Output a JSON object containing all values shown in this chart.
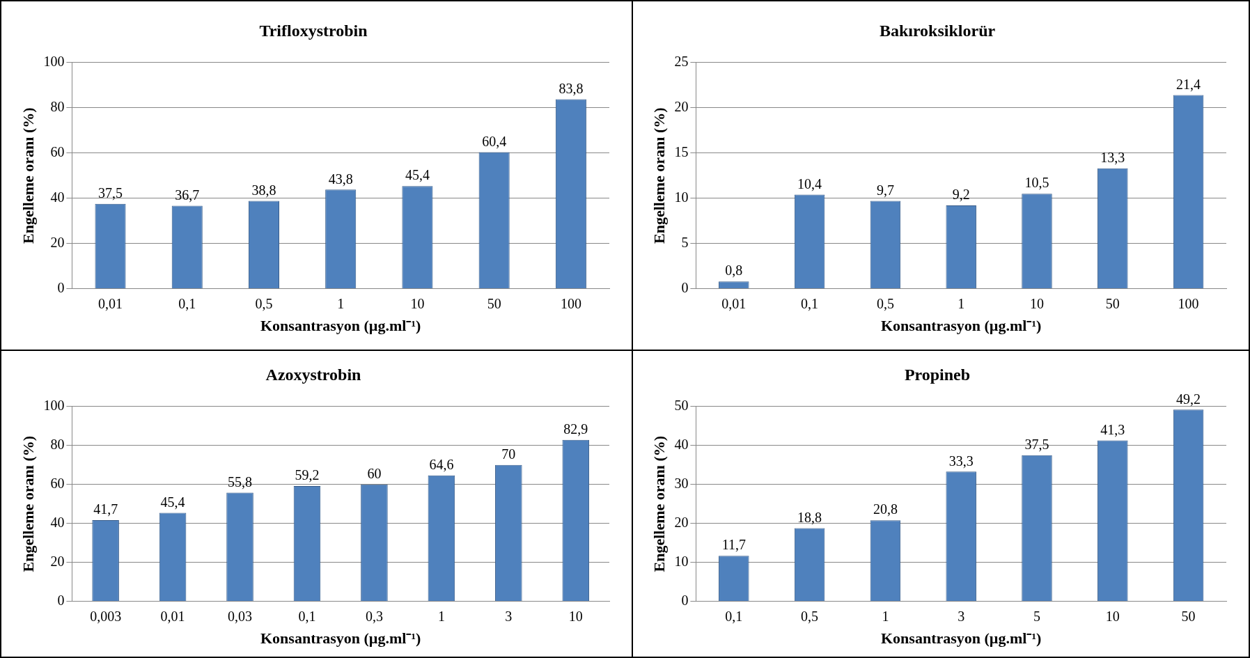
{
  "chart_data": [
    {
      "type": "bar",
      "title": "Trifloxystrobin",
      "xlabel": "Konsantrasyon (µg.ml⁻¹)",
      "ylabel": "Engelleme oranı (%)",
      "categories": [
        "0,01",
        "0,1",
        "0,5",
        "1",
        "10",
        "50",
        "100"
      ],
      "values": [
        37.5,
        36.7,
        38.8,
        43.8,
        45.4,
        60.4,
        83.8
      ],
      "value_labels": [
        "37,5",
        "36,7",
        "38,8",
        "43,8",
        "45,4",
        "60,4",
        "83,8"
      ],
      "color": "#4f81bd",
      "ylim": [
        0,
        100
      ],
      "yticks": [
        0,
        20,
        40,
        60,
        80,
        100
      ],
      "grid": "y"
    },
    {
      "type": "bar",
      "title": "Bakıroksiklorür",
      "xlabel": "Konsantrasyon (µg.ml⁻¹)",
      "ylabel": "Engelleme oranı (%)",
      "categories": [
        "0,01",
        "0,1",
        "0,5",
        "1",
        "10",
        "50",
        "100"
      ],
      "values": [
        0.8,
        10.4,
        9.7,
        9.2,
        10.5,
        13.3,
        21.4
      ],
      "value_labels": [
        "0,8",
        "10,4",
        "9,7",
        "9,2",
        "10,5",
        "13,3",
        "21,4"
      ],
      "color": "#4f81bd",
      "ylim": [
        0,
        25
      ],
      "yticks": [
        0,
        5,
        10,
        15,
        20,
        25
      ],
      "grid": "y"
    },
    {
      "type": "bar",
      "title": "Azoxystrobin",
      "xlabel": "Konsantrasyon (µg.ml⁻¹)",
      "ylabel": "Engelleme oranı (%)",
      "categories": [
        "0,003",
        "0,01",
        "0,03",
        "0,1",
        "0,3",
        "1",
        "3",
        "10"
      ],
      "values": [
        41.7,
        45.4,
        55.8,
        59.2,
        60,
        64.6,
        70,
        82.9
      ],
      "value_labels": [
        "41,7",
        "45,4",
        "55,8",
        "59,2",
        "60",
        "64,6",
        "70",
        "82,9"
      ],
      "color": "#4f81bd",
      "ylim": [
        0,
        100
      ],
      "yticks": [
        0,
        20,
        40,
        60,
        80,
        100
      ],
      "grid": "y"
    },
    {
      "type": "bar",
      "title": "Propineb",
      "xlabel": "Konsantrasyon (µg.ml⁻¹)",
      "ylabel": "Engelleme oranı (%)",
      "categories": [
        "0,1",
        "0,5",
        "1",
        "3",
        "5",
        "10",
        "50"
      ],
      "values": [
        11.7,
        18.8,
        20.8,
        33.3,
        37.5,
        41.3,
        49.2
      ],
      "value_labels": [
        "11,7",
        "18,8",
        "20,8",
        "33,3",
        "37,5",
        "41,3",
        "49,2"
      ],
      "color": "#4f81bd",
      "ylim": [
        0,
        50
      ],
      "yticks": [
        0,
        10,
        20,
        30,
        40,
        50
      ],
      "grid": "y"
    }
  ]
}
